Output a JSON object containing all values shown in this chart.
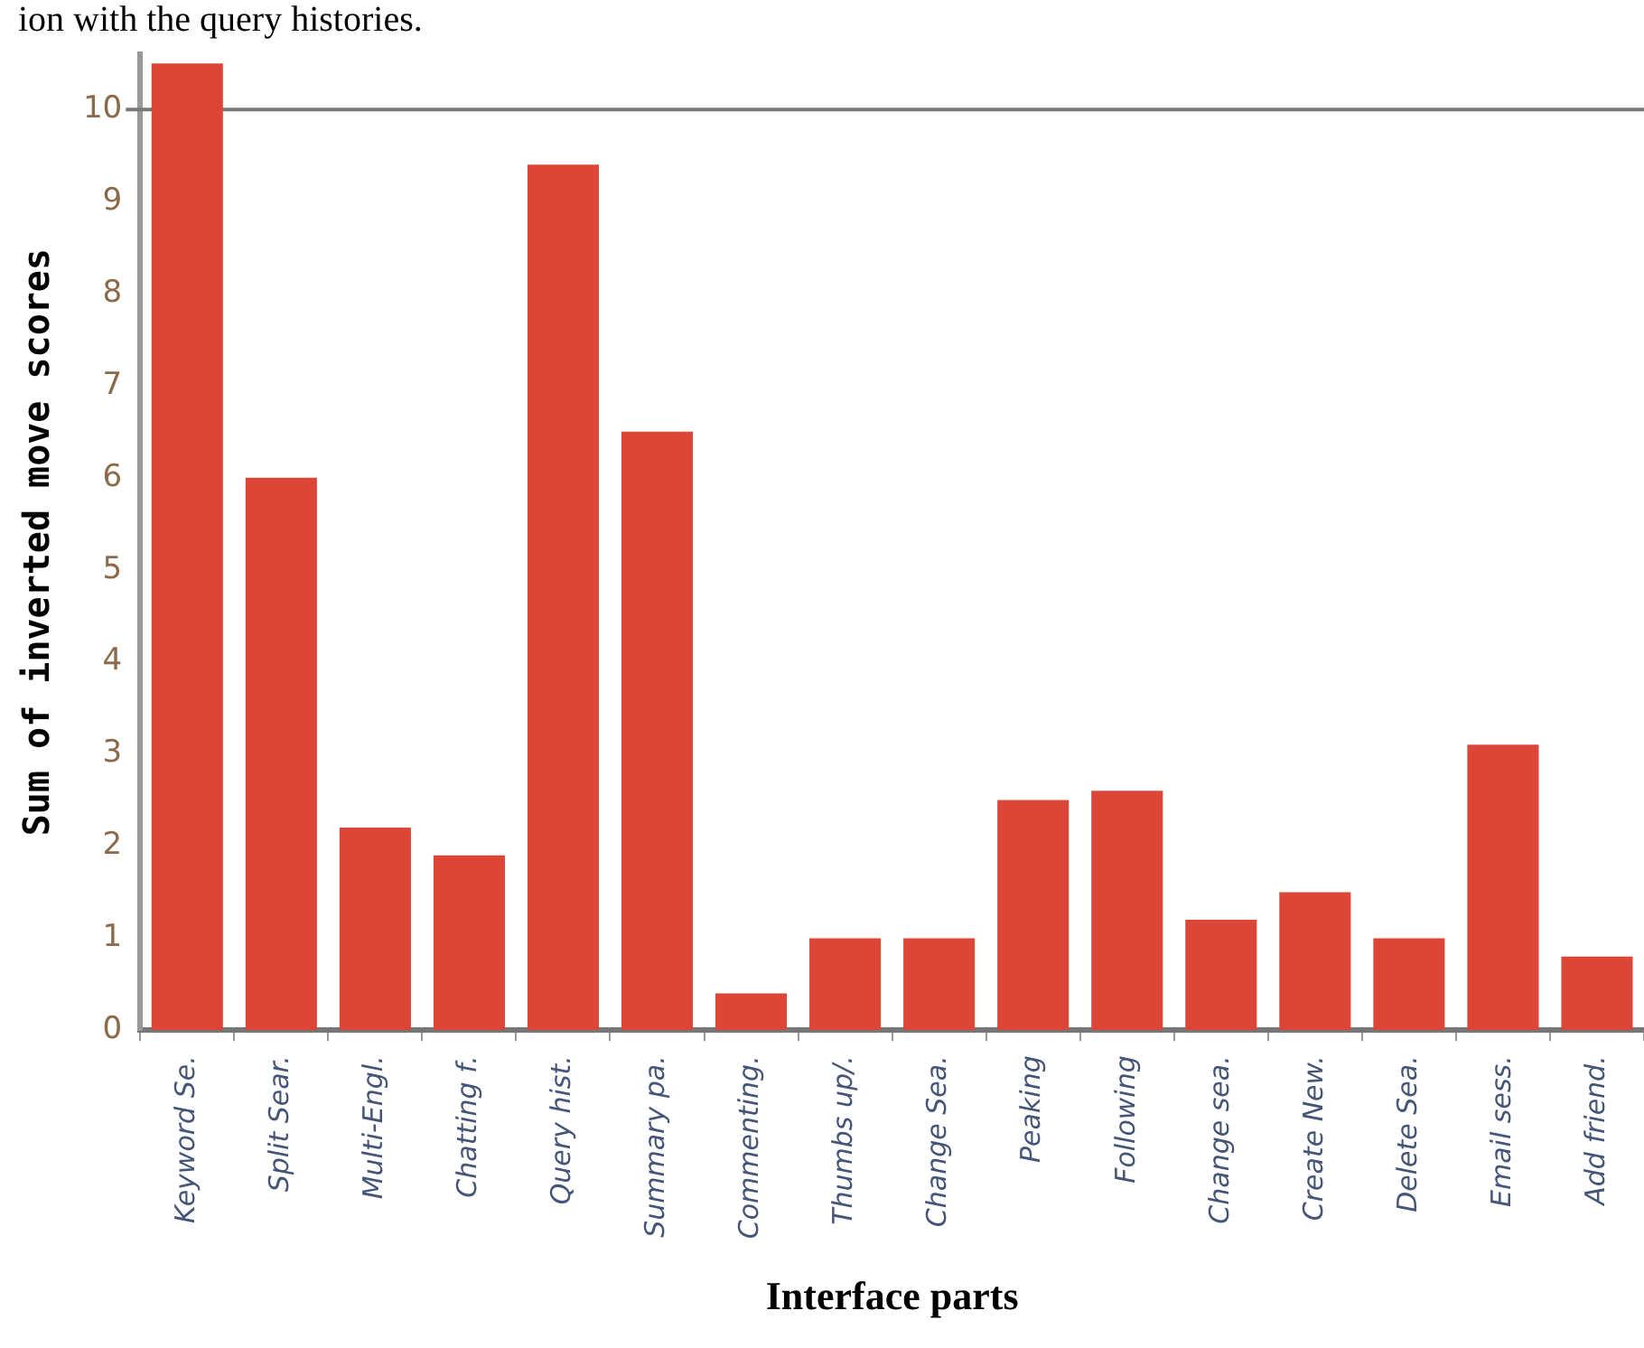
{
  "chart_data": {
    "type": "bar",
    "xlabel": "Interface parts",
    "ylabel": "Sum of inverted move scores",
    "annotations": [
      "ion with the query histories."
    ],
    "categories": [
      "Keyword Se.",
      "Split Sear.",
      "Multi-Engl.",
      "Chatting f.",
      "Query hist.",
      "Summary pa.",
      "Commenting.",
      "Thumbs up/.",
      "Change Sea.",
      "Peaking",
      "Following",
      "Change sea.",
      "Create New.",
      "Delete Sea.",
      "Email sess.",
      "Add friend."
    ],
    "values": [
      10.5,
      6,
      2.2,
      1.9,
      9.4,
      6.5,
      0.4,
      1,
      1,
      2.5,
      2.6,
      1.2,
      1.5,
      1,
      3.1,
      0.8
    ],
    "color": "#dc4637",
    "ylim": [
      0,
      10.6
    ],
    "yticks": [
      0,
      1,
      2,
      3,
      4,
      5,
      6,
      7,
      8,
      9,
      10
    ],
    "ref_lines": [
      {
        "axis": "y",
        "value": 10,
        "color": "#777777"
      }
    ],
    "grid": false,
    "legend": false
  }
}
